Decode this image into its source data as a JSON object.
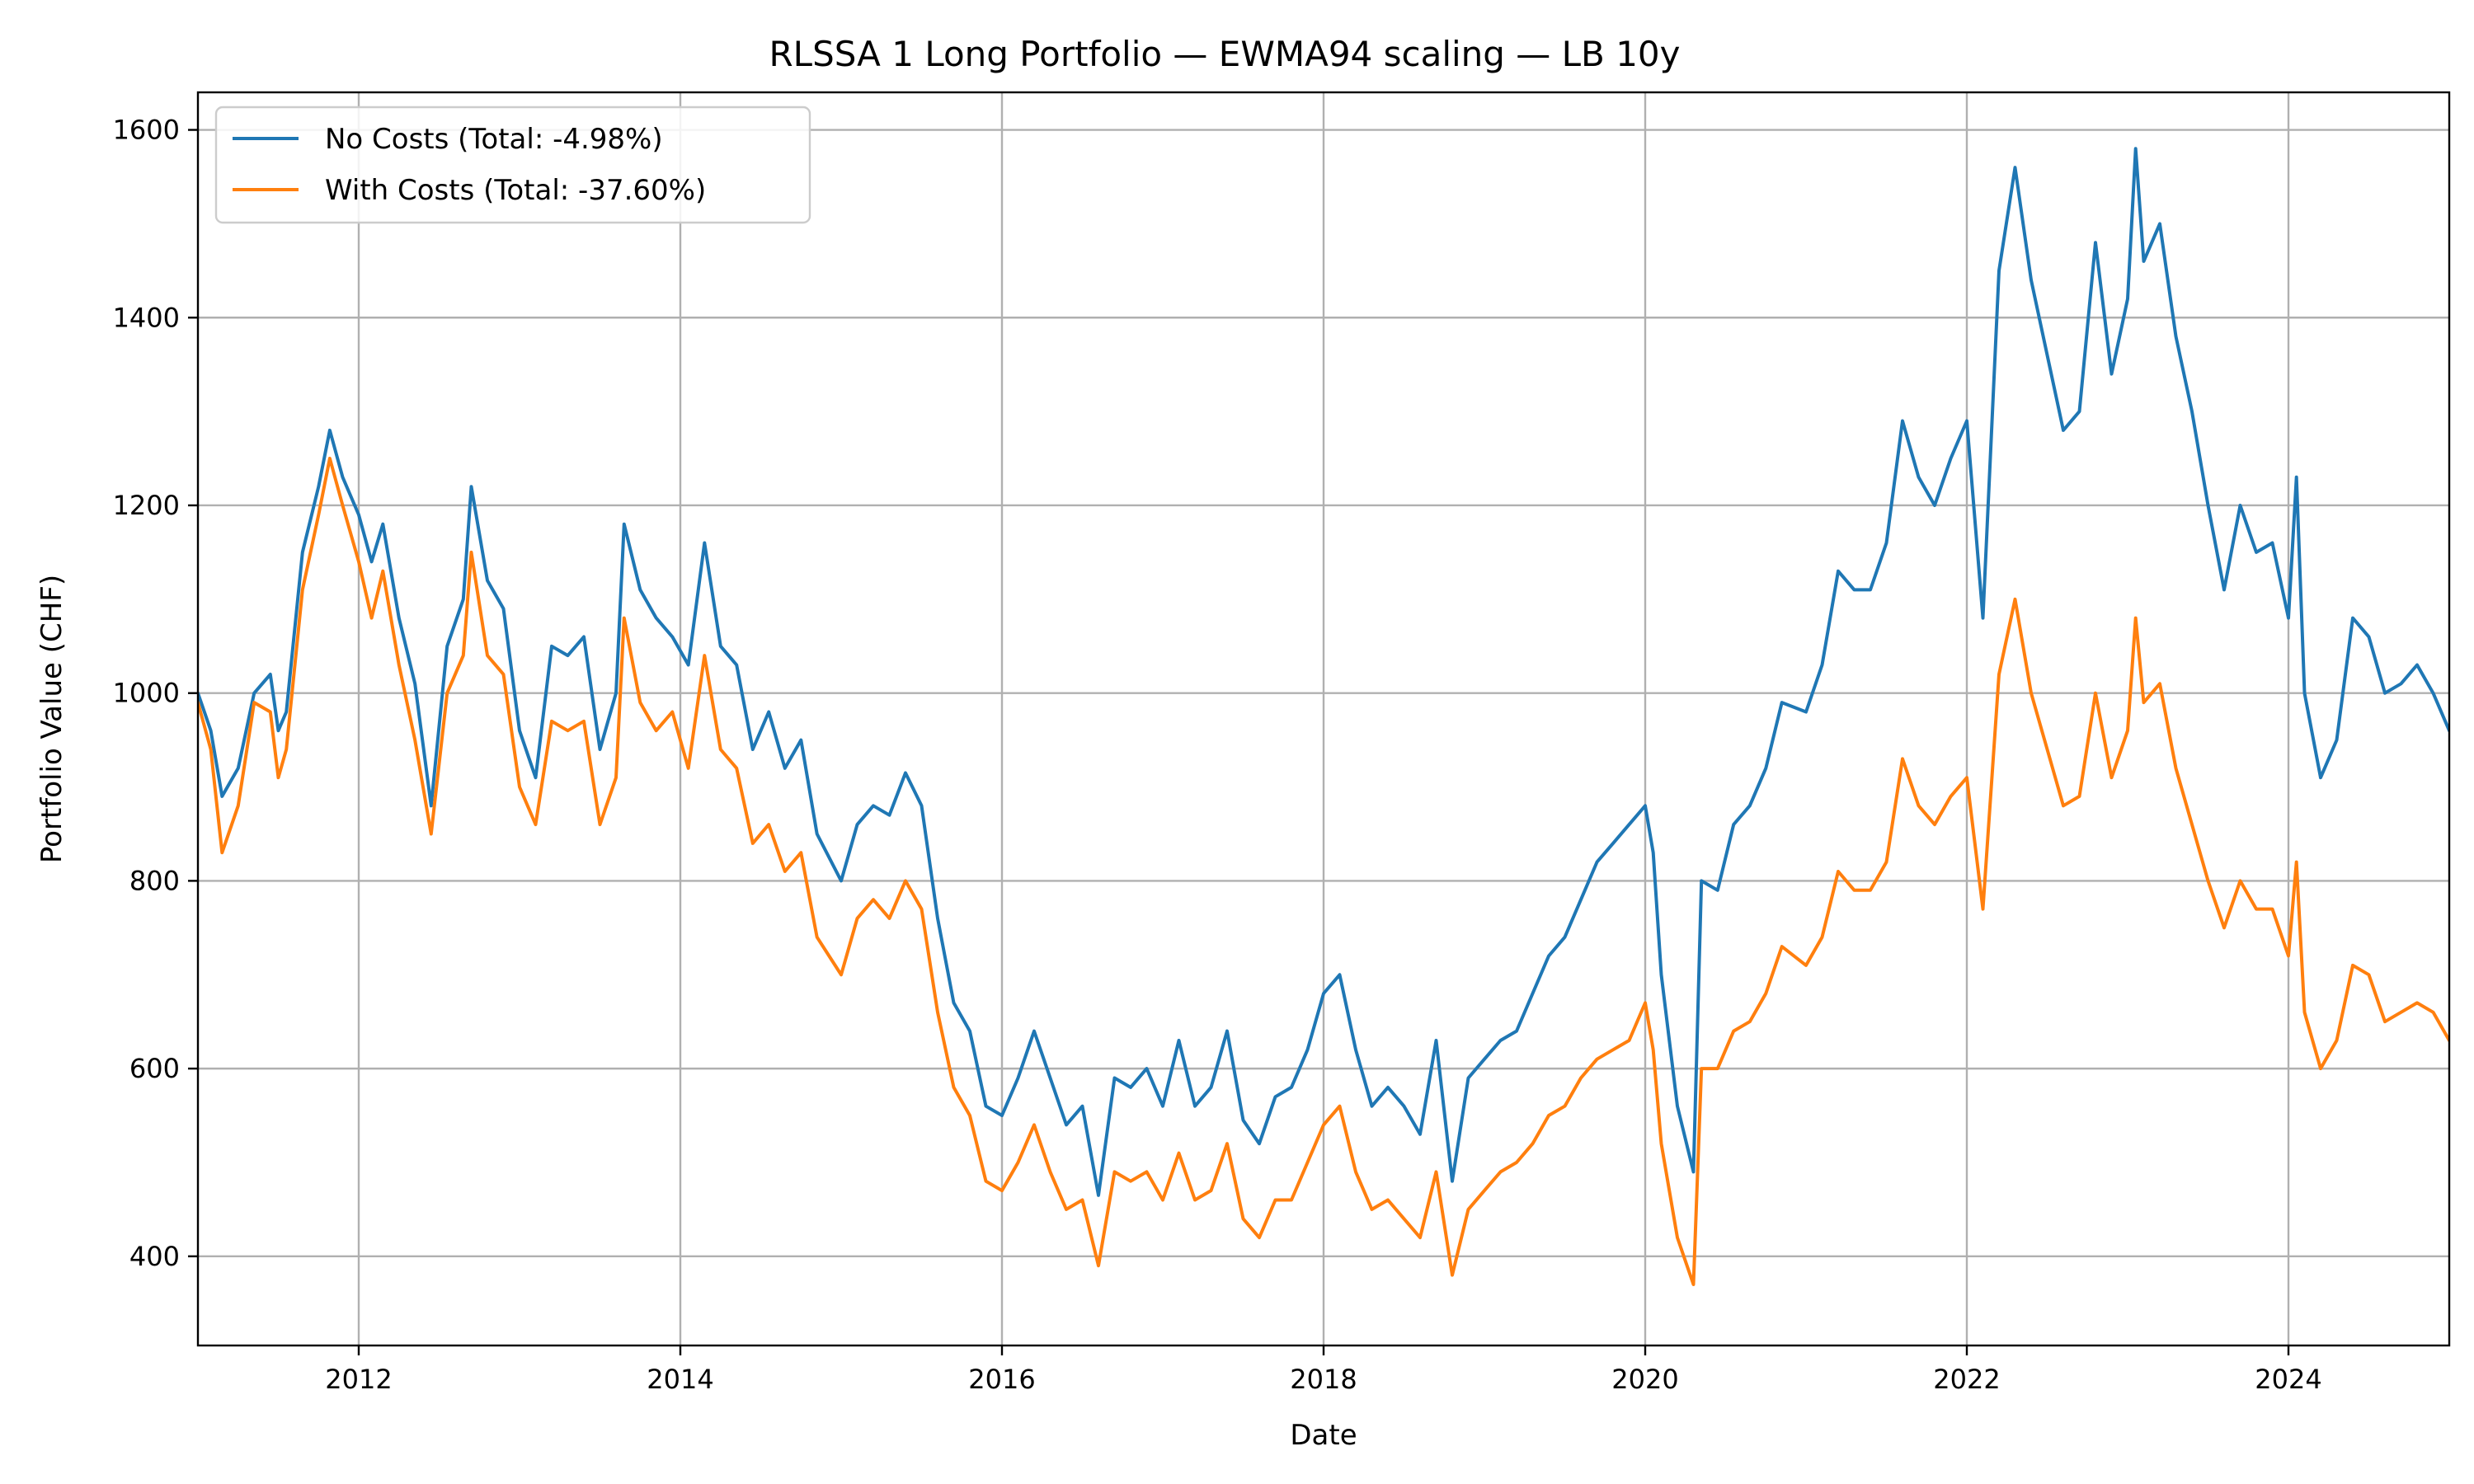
{
  "chart_data": {
    "type": "line",
    "title": "RLSSA 1 Long Portfolio — EWMA94 scaling — LB 10y",
    "xlabel": "Date",
    "ylabel": "Portfolio Value (CHF)",
    "xlim": [
      2011.0,
      2025.0
    ],
    "ylim": [
      305,
      1640
    ],
    "x_ticks": [
      2012,
      2014,
      2016,
      2018,
      2020,
      2022,
      2024
    ],
    "x_tick_labels": [
      "2012",
      "2014",
      "2016",
      "2018",
      "2020",
      "2022",
      "2024"
    ],
    "y_ticks": [
      400,
      600,
      800,
      1000,
      1200,
      1400,
      1600
    ],
    "y_tick_labels": [
      "400",
      "600",
      "800",
      "1000",
      "1200",
      "1400",
      "1600"
    ],
    "grid": true,
    "legend_position": "top-left",
    "series": [
      {
        "name": "No Costs (Total: -4.98%)",
        "color": "#1f77b4",
        "points": [
          [
            2011.0,
            1000
          ],
          [
            2011.08,
            960
          ],
          [
            2011.15,
            890
          ],
          [
            2011.25,
            920
          ],
          [
            2011.35,
            1000
          ],
          [
            2011.45,
            1020
          ],
          [
            2011.5,
            960
          ],
          [
            2011.55,
            980
          ],
          [
            2011.65,
            1150
          ],
          [
            2011.75,
            1220
          ],
          [
            2011.82,
            1280
          ],
          [
            2011.9,
            1230
          ],
          [
            2012.0,
            1190
          ],
          [
            2012.08,
            1140
          ],
          [
            2012.15,
            1180
          ],
          [
            2012.25,
            1080
          ],
          [
            2012.35,
            1010
          ],
          [
            2012.45,
            880
          ],
          [
            2012.55,
            1050
          ],
          [
            2012.65,
            1100
          ],
          [
            2012.7,
            1220
          ],
          [
            2012.8,
            1120
          ],
          [
            2012.9,
            1090
          ],
          [
            2013.0,
            960
          ],
          [
            2013.1,
            910
          ],
          [
            2013.2,
            1050
          ],
          [
            2013.3,
            1040
          ],
          [
            2013.4,
            1060
          ],
          [
            2013.5,
            940
          ],
          [
            2013.6,
            1000
          ],
          [
            2013.65,
            1180
          ],
          [
            2013.75,
            1110
          ],
          [
            2013.85,
            1080
          ],
          [
            2013.95,
            1060
          ],
          [
            2014.05,
            1030
          ],
          [
            2014.15,
            1160
          ],
          [
            2014.25,
            1050
          ],
          [
            2014.35,
            1030
          ],
          [
            2014.45,
            940
          ],
          [
            2014.55,
            980
          ],
          [
            2014.65,
            920
          ],
          [
            2014.75,
            950
          ],
          [
            2014.85,
            850
          ],
          [
            2015.0,
            800
          ],
          [
            2015.1,
            860
          ],
          [
            2015.2,
            880
          ],
          [
            2015.3,
            870
          ],
          [
            2015.4,
            915
          ],
          [
            2015.5,
            880
          ],
          [
            2015.6,
            760
          ],
          [
            2015.7,
            670
          ],
          [
            2015.8,
            640
          ],
          [
            2015.9,
            560
          ],
          [
            2016.0,
            550
          ],
          [
            2016.1,
            590
          ],
          [
            2016.2,
            640
          ],
          [
            2016.3,
            590
          ],
          [
            2016.4,
            540
          ],
          [
            2016.5,
            560
          ],
          [
            2016.6,
            465
          ],
          [
            2016.7,
            590
          ],
          [
            2016.8,
            580
          ],
          [
            2016.9,
            600
          ],
          [
            2017.0,
            560
          ],
          [
            2017.1,
            630
          ],
          [
            2017.2,
            560
          ],
          [
            2017.3,
            580
          ],
          [
            2017.4,
            640
          ],
          [
            2017.5,
            545
          ],
          [
            2017.6,
            520
          ],
          [
            2017.7,
            570
          ],
          [
            2017.8,
            580
          ],
          [
            2017.9,
            620
          ],
          [
            2018.0,
            680
          ],
          [
            2018.1,
            700
          ],
          [
            2018.2,
            620
          ],
          [
            2018.3,
            560
          ],
          [
            2018.4,
            580
          ],
          [
            2018.5,
            560
          ],
          [
            2018.6,
            530
          ],
          [
            2018.7,
            630
          ],
          [
            2018.8,
            480
          ],
          [
            2018.9,
            590
          ],
          [
            2019.0,
            610
          ],
          [
            2019.1,
            630
          ],
          [
            2019.2,
            640
          ],
          [
            2019.3,
            680
          ],
          [
            2019.4,
            720
          ],
          [
            2019.5,
            740
          ],
          [
            2019.6,
            780
          ],
          [
            2019.7,
            820
          ],
          [
            2019.8,
            840
          ],
          [
            2019.9,
            860
          ],
          [
            2020.0,
            880
          ],
          [
            2020.05,
            830
          ],
          [
            2020.1,
            700
          ],
          [
            2020.2,
            560
          ],
          [
            2020.3,
            490
          ],
          [
            2020.35,
            800
          ],
          [
            2020.45,
            790
          ],
          [
            2020.55,
            860
          ],
          [
            2020.65,
            880
          ],
          [
            2020.75,
            920
          ],
          [
            2020.85,
            990
          ],
          [
            2021.0,
            980
          ],
          [
            2021.1,
            1030
          ],
          [
            2021.2,
            1130
          ],
          [
            2021.3,
            1110
          ],
          [
            2021.4,
            1110
          ],
          [
            2021.5,
            1160
          ],
          [
            2021.6,
            1290
          ],
          [
            2021.7,
            1230
          ],
          [
            2021.8,
            1200
          ],
          [
            2021.9,
            1250
          ],
          [
            2022.0,
            1290
          ],
          [
            2022.1,
            1080
          ],
          [
            2022.2,
            1450
          ],
          [
            2022.3,
            1560
          ],
          [
            2022.4,
            1440
          ],
          [
            2022.5,
            1360
          ],
          [
            2022.6,
            1280
          ],
          [
            2022.7,
            1300
          ],
          [
            2022.8,
            1480
          ],
          [
            2022.9,
            1340
          ],
          [
            2023.0,
            1420
          ],
          [
            2023.05,
            1580
          ],
          [
            2023.1,
            1460
          ],
          [
            2023.2,
            1500
          ],
          [
            2023.3,
            1380
          ],
          [
            2023.4,
            1300
          ],
          [
            2023.5,
            1200
          ],
          [
            2023.6,
            1110
          ],
          [
            2023.7,
            1200
          ],
          [
            2023.8,
            1150
          ],
          [
            2023.9,
            1160
          ],
          [
            2024.0,
            1080
          ],
          [
            2024.05,
            1230
          ],
          [
            2024.1,
            1000
          ],
          [
            2024.2,
            910
          ],
          [
            2024.3,
            950
          ],
          [
            2024.4,
            1080
          ],
          [
            2024.5,
            1060
          ],
          [
            2024.6,
            1000
          ],
          [
            2024.7,
            1010
          ],
          [
            2024.8,
            1030
          ],
          [
            2024.9,
            1000
          ],
          [
            2025.0,
            960
          ]
        ]
      },
      {
        "name": "With Costs (Total: -37.60%)",
        "color": "#ff7f0e",
        "points": [
          [
            2011.0,
            990
          ],
          [
            2011.08,
            940
          ],
          [
            2011.15,
            830
          ],
          [
            2011.25,
            880
          ],
          [
            2011.35,
            990
          ],
          [
            2011.45,
            980
          ],
          [
            2011.5,
            910
          ],
          [
            2011.55,
            940
          ],
          [
            2011.65,
            1110
          ],
          [
            2011.75,
            1190
          ],
          [
            2011.82,
            1250
          ],
          [
            2011.9,
            1200
          ],
          [
            2012.0,
            1140
          ],
          [
            2012.08,
            1080
          ],
          [
            2012.15,
            1130
          ],
          [
            2012.25,
            1030
          ],
          [
            2012.35,
            950
          ],
          [
            2012.45,
            850
          ],
          [
            2012.55,
            1000
          ],
          [
            2012.65,
            1040
          ],
          [
            2012.7,
            1150
          ],
          [
            2012.8,
            1040
          ],
          [
            2012.9,
            1020
          ],
          [
            2013.0,
            900
          ],
          [
            2013.1,
            860
          ],
          [
            2013.2,
            970
          ],
          [
            2013.3,
            960
          ],
          [
            2013.4,
            970
          ],
          [
            2013.5,
            860
          ],
          [
            2013.6,
            910
          ],
          [
            2013.65,
            1080
          ],
          [
            2013.75,
            990
          ],
          [
            2013.85,
            960
          ],
          [
            2013.95,
            980
          ],
          [
            2014.05,
            920
          ],
          [
            2014.15,
            1040
          ],
          [
            2014.25,
            940
          ],
          [
            2014.35,
            920
          ],
          [
            2014.45,
            840
          ],
          [
            2014.55,
            860
          ],
          [
            2014.65,
            810
          ],
          [
            2014.75,
            830
          ],
          [
            2014.85,
            740
          ],
          [
            2015.0,
            700
          ],
          [
            2015.1,
            760
          ],
          [
            2015.2,
            780
          ],
          [
            2015.3,
            760
          ],
          [
            2015.4,
            800
          ],
          [
            2015.5,
            770
          ],
          [
            2015.6,
            660
          ],
          [
            2015.7,
            580
          ],
          [
            2015.8,
            550
          ],
          [
            2015.9,
            480
          ],
          [
            2016.0,
            470
          ],
          [
            2016.1,
            500
          ],
          [
            2016.2,
            540
          ],
          [
            2016.3,
            490
          ],
          [
            2016.4,
            450
          ],
          [
            2016.5,
            460
          ],
          [
            2016.6,
            390
          ],
          [
            2016.7,
            490
          ],
          [
            2016.8,
            480
          ],
          [
            2016.9,
            490
          ],
          [
            2017.0,
            460
          ],
          [
            2017.1,
            510
          ],
          [
            2017.2,
            460
          ],
          [
            2017.3,
            470
          ],
          [
            2017.4,
            520
          ],
          [
            2017.5,
            440
          ],
          [
            2017.6,
            420
          ],
          [
            2017.7,
            460
          ],
          [
            2017.8,
            460
          ],
          [
            2017.9,
            500
          ],
          [
            2018.0,
            540
          ],
          [
            2018.1,
            560
          ],
          [
            2018.2,
            490
          ],
          [
            2018.3,
            450
          ],
          [
            2018.4,
            460
          ],
          [
            2018.5,
            440
          ],
          [
            2018.6,
            420
          ],
          [
            2018.7,
            490
          ],
          [
            2018.8,
            380
          ],
          [
            2018.9,
            450
          ],
          [
            2019.0,
            470
          ],
          [
            2019.1,
            490
          ],
          [
            2019.2,
            500
          ],
          [
            2019.3,
            520
          ],
          [
            2019.4,
            550
          ],
          [
            2019.5,
            560
          ],
          [
            2019.6,
            590
          ],
          [
            2019.7,
            610
          ],
          [
            2019.8,
            620
          ],
          [
            2019.9,
            630
          ],
          [
            2020.0,
            670
          ],
          [
            2020.05,
            620
          ],
          [
            2020.1,
            520
          ],
          [
            2020.2,
            420
          ],
          [
            2020.3,
            370
          ],
          [
            2020.35,
            600
          ],
          [
            2020.45,
            600
          ],
          [
            2020.55,
            640
          ],
          [
            2020.65,
            650
          ],
          [
            2020.75,
            680
          ],
          [
            2020.85,
            730
          ],
          [
            2021.0,
            710
          ],
          [
            2021.1,
            740
          ],
          [
            2021.2,
            810
          ],
          [
            2021.3,
            790
          ],
          [
            2021.4,
            790
          ],
          [
            2021.5,
            820
          ],
          [
            2021.6,
            930
          ],
          [
            2021.7,
            880
          ],
          [
            2021.8,
            860
          ],
          [
            2021.9,
            890
          ],
          [
            2022.0,
            910
          ],
          [
            2022.1,
            770
          ],
          [
            2022.2,
            1020
          ],
          [
            2022.3,
            1100
          ],
          [
            2022.4,
            1000
          ],
          [
            2022.5,
            940
          ],
          [
            2022.6,
            880
          ],
          [
            2022.7,
            890
          ],
          [
            2022.8,
            1000
          ],
          [
            2022.9,
            910
          ],
          [
            2023.0,
            960
          ],
          [
            2023.05,
            1080
          ],
          [
            2023.1,
            990
          ],
          [
            2023.2,
            1010
          ],
          [
            2023.3,
            920
          ],
          [
            2023.4,
            860
          ],
          [
            2023.5,
            800
          ],
          [
            2023.6,
            750
          ],
          [
            2023.7,
            800
          ],
          [
            2023.8,
            770
          ],
          [
            2023.9,
            770
          ],
          [
            2024.0,
            720
          ],
          [
            2024.05,
            820
          ],
          [
            2024.1,
            660
          ],
          [
            2024.2,
            600
          ],
          [
            2024.3,
            630
          ],
          [
            2024.4,
            710
          ],
          [
            2024.5,
            700
          ],
          [
            2024.6,
            650
          ],
          [
            2024.7,
            660
          ],
          [
            2024.8,
            670
          ],
          [
            2024.9,
            660
          ],
          [
            2025.0,
            630
          ]
        ]
      }
    ]
  }
}
